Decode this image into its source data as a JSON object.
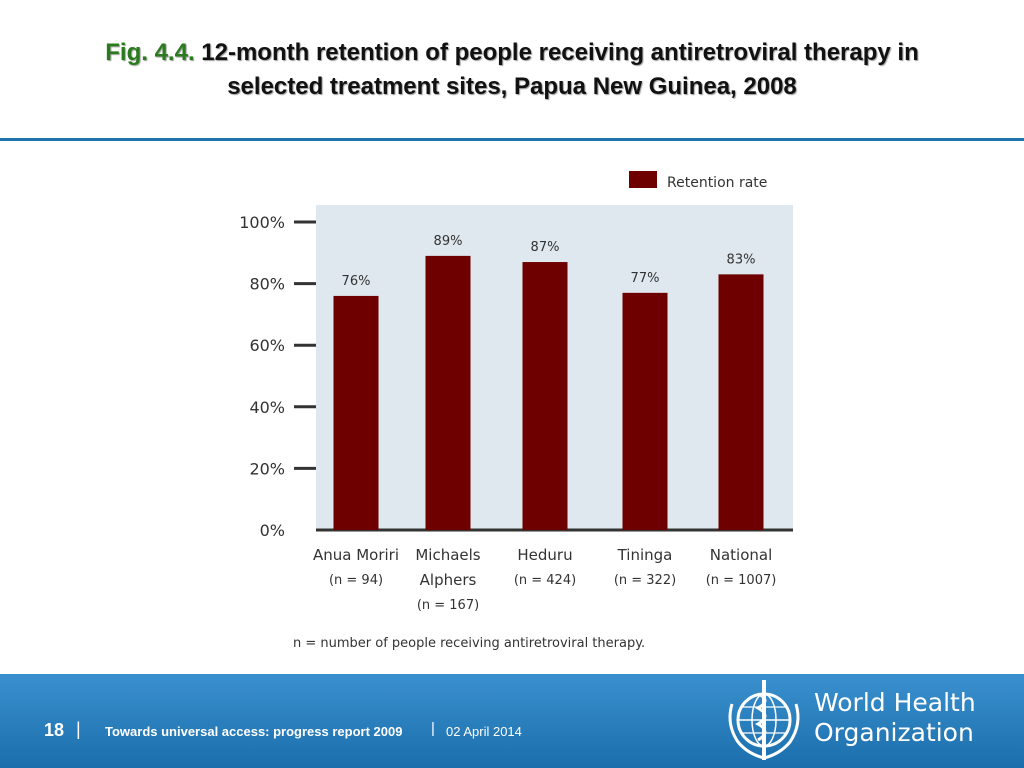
{
  "header": {
    "fig_label": "Fig. 4.4.",
    "title_line1": "12-month retention of people receiving antiretroviral therapy in",
    "title_line2": "selected treatment sites, Papua New Guinea, 2008"
  },
  "chart_data": {
    "type": "bar",
    "categories": [
      {
        "name": "Anua Moriri",
        "name2": "",
        "n": "(n = 94)"
      },
      {
        "name": "Michaels",
        "name2": "Alphers",
        "n": "(n = 167)"
      },
      {
        "name": "Heduru",
        "name2": "",
        "n": "(n = 424)"
      },
      {
        "name": "Tininga",
        "name2": "",
        "n": "(n = 322)"
      },
      {
        "name": "National",
        "name2": "",
        "n": "(n = 1007)"
      }
    ],
    "series": [
      {
        "name": "Retention rate",
        "values": [
          76,
          89,
          87,
          77,
          83
        ],
        "color": "#6e0000"
      }
    ],
    "data_labels": [
      "76%",
      "89%",
      "87%",
      "77%",
      "83%"
    ],
    "yticks": [
      "0%",
      "20%",
      "40%",
      "60%",
      "80%",
      "100%"
    ],
    "ylim": [
      0,
      100
    ],
    "legend_position": "top-right",
    "plot_background": "#dfe8ee",
    "note": "n = number of people receiving antiretroviral therapy."
  },
  "footer": {
    "page_number": "18",
    "separator": "|",
    "report_title": "Towards universal access: progress report 2009",
    "date": "02 April 2014",
    "org_line1": "World Health",
    "org_line2": "Organization"
  }
}
